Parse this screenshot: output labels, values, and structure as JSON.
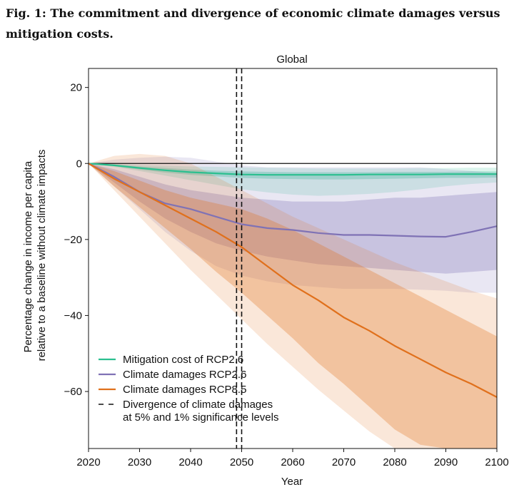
{
  "figure_title": "Fig. 1: The commitment and divergence of economic climate damages versus mitigation costs.",
  "colors": {
    "mitigation": "#2bbf8f",
    "rcp26": "#7f72b5",
    "rcp85": "#e0701c",
    "divergence": "#111111"
  },
  "chart_data": {
    "type": "line",
    "title": "Global",
    "xlabel": "Year",
    "ylabel": [
      "Percentage change in income per capita",
      "relative to a baseline without climate impacts"
    ],
    "xlim": [
      2020,
      2100
    ],
    "ylim": [
      -75,
      25
    ],
    "x_ticks": [
      2020,
      2030,
      2040,
      2050,
      2060,
      2070,
      2080,
      2090,
      2100
    ],
    "y_ticks": [
      20,
      0,
      -20,
      -40,
      -60
    ],
    "x_tick_labels": [
      "2020",
      "2030",
      "2040",
      "2050",
      "2060",
      "2070",
      "2080",
      "2090",
      "2100"
    ],
    "y_tick_labels": [
      "20",
      "0",
      "−20",
      "−40",
      "−60"
    ],
    "legend_position": "bottom-left",
    "x": [
      2020,
      2025,
      2030,
      2035,
      2040,
      2045,
      2050,
      2055,
      2060,
      2065,
      2070,
      2075,
      2080,
      2085,
      2090,
      2095,
      2100
    ],
    "series": [
      {
        "name": "Mitigation cost of RCP2.6",
        "color_key": "mitigation",
        "values": [
          0,
          -0.5,
          -1.2,
          -1.8,
          -2.3,
          -2.6,
          -2.9,
          -3.0,
          -3.0,
          -3.0,
          -3.0,
          -2.9,
          -2.9,
          -2.9,
          -2.8,
          -2.8,
          -2.8
        ],
        "band_outer": {
          "lower": [
            0,
            -0.9,
            -2.0,
            -3.2,
            -4.4,
            -5.6,
            -6.8,
            -7.6,
            -8.2,
            -8.5,
            -8.3,
            -8.0,
            -7.5,
            -6.8,
            -6.0,
            -5.4,
            -5.0
          ],
          "upper": [
            0,
            -0.1,
            -0.4,
            -0.6,
            -0.8,
            -0.9,
            -1.0,
            -1.1,
            -1.2,
            -1.3,
            -1.3,
            -1.3,
            -1.3,
            -1.2,
            -1.2,
            -1.1,
            -1.1
          ]
        },
        "band_inner": {
          "lower": [
            0,
            -0.7,
            -1.6,
            -2.4,
            -3.0,
            -3.4,
            -3.8,
            -4.0,
            -4.1,
            -4.2,
            -4.2,
            -4.1,
            -4.0,
            -3.9,
            -3.8,
            -3.8,
            -3.7
          ],
          "upper": [
            0,
            -0.3,
            -0.8,
            -1.2,
            -1.6,
            -1.9,
            -2.1,
            -2.2,
            -2.3,
            -2.3,
            -2.3,
            -2.3,
            -2.2,
            -2.2,
            -2.2,
            -2.1,
            -2.1
          ]
        }
      },
      {
        "name": "Climate damages RCP2.6",
        "color_key": "rcp26",
        "values": [
          0,
          -3.5,
          -7.5,
          -10.5,
          -12.0,
          -14.0,
          -16.0,
          -17.0,
          -17.5,
          -18.3,
          -18.8,
          -18.8,
          -19.0,
          -19.2,
          -19.3,
          -18.0,
          -16.5
        ],
        "band_outer": {
          "lower": [
            0,
            -6.0,
            -12.0,
            -18.0,
            -23.0,
            -27.0,
            -29.5,
            -31.0,
            -32.0,
            -32.5,
            -33.0,
            -33.0,
            -33.0,
            -33.2,
            -33.5,
            -34.0,
            -34.0
          ],
          "upper": [
            0,
            1.0,
            1.5,
            1.8,
            1.5,
            0.5,
            -0.5,
            -1.0,
            -1.0,
            -1.0,
            -1.0,
            -1.0,
            -1.0,
            -1.0,
            -1.5,
            -2.0,
            -2.5
          ]
        },
        "band_inner": {
          "lower": [
            0,
            -5.0,
            -10.0,
            -14.5,
            -18.0,
            -21.0,
            -23.0,
            -24.5,
            -25.5,
            -26.5,
            -27.0,
            -27.5,
            -28.0,
            -28.5,
            -29.0,
            -28.5,
            -28.0
          ],
          "upper": [
            0,
            -1.5,
            -3.5,
            -5.5,
            -7.0,
            -8.0,
            -9.0,
            -9.5,
            -10.0,
            -10.0,
            -10.0,
            -9.5,
            -9.0,
            -9.0,
            -8.5,
            -8.0,
            -7.5
          ]
        }
      },
      {
        "name": "Climate damages RCP8.5",
        "color_key": "rcp85",
        "values": [
          0,
          -4.0,
          -7.5,
          -11.0,
          -14.5,
          -18.0,
          -22.0,
          -27.0,
          -32.0,
          -36.0,
          -40.5,
          -44.0,
          -48.0,
          -51.5,
          -55.0,
          -58.0,
          -61.5
        ],
        "band_outer": {
          "lower": [
            0,
            -7.0,
            -14.0,
            -21.0,
            -28.0,
            -34.5,
            -41.0,
            -47.5,
            -53.5,
            -59.5,
            -65.0,
            -70.5,
            -75.0,
            -75.0,
            -75.0,
            -75.0,
            -75.0
          ],
          "upper": [
            0,
            2.0,
            2.5,
            2.0,
            0.0,
            -3.5,
            -7.0,
            -10.5,
            -14.0,
            -17.0,
            -20.0,
            -23.0,
            -26.0,
            -28.5,
            -31.0,
            -33.5,
            -35.5
          ]
        },
        "band_inner": {
          "lower": [
            0,
            -6.0,
            -11.5,
            -17.0,
            -22.5,
            -28.5,
            -34.0,
            -40.0,
            -46.0,
            -52.5,
            -58.0,
            -64.0,
            -70.0,
            -74.0,
            -75.0,
            -75.0,
            -75.0
          ],
          "upper": [
            0,
            -2.0,
            -4.5,
            -7.0,
            -9.0,
            -10.5,
            -12.0,
            -14.5,
            -17.5,
            -21.0,
            -24.5,
            -28.0,
            -31.5,
            -35.0,
            -38.5,
            -42.0,
            -45.5
          ]
        }
      }
    ],
    "vertical_lines": {
      "name": "Divergence of climate damages at 5% and 1% significance levels",
      "x": [
        2049,
        2050
      ]
    },
    "legend": [
      {
        "label": "Mitigation cost of RCP2.6",
        "style": "solid",
        "color_key": "mitigation"
      },
      {
        "label": "Climate damages RCP2.6",
        "style": "solid",
        "color_key": "rcp26"
      },
      {
        "label": "Climate damages RCP8.5",
        "style": "solid",
        "color_key": "rcp85"
      },
      {
        "label": [
          "Divergence of climate damages",
          "at 5% and 1% significance levels"
        ],
        "style": "dashed",
        "color_key": "divergence"
      }
    ]
  }
}
